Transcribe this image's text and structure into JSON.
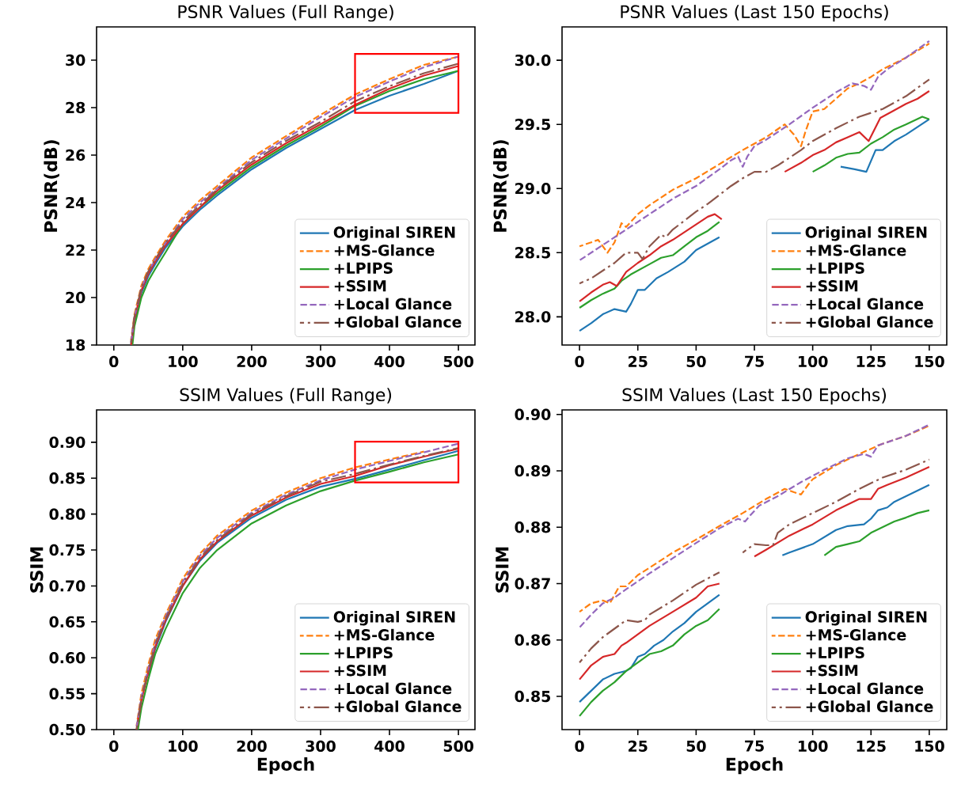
{
  "chart_data": [
    {
      "type": "line",
      "title": "PSNR Values (Full Range)",
      "ylabel": "PSNR(dB)",
      "xlim": [
        -25,
        524
      ],
      "ylim": [
        18,
        31.4
      ],
      "xticks": [
        0,
        100,
        200,
        300,
        400,
        500
      ],
      "yticks": [
        18,
        20,
        22,
        24,
        26,
        28,
        30
      ],
      "legend": "bottom right",
      "series": [
        {
          "name": "Original SIREN",
          "color": "#1f77b4",
          "line_style": "solid",
          "x": [
            25,
            30,
            40,
            50,
            60,
            75,
            100,
            125,
            150,
            200,
            250,
            300,
            350,
            400,
            450,
            500
          ],
          "values": [
            18.0,
            19.0,
            20.2,
            20.9,
            21.4,
            22.1,
            23.0,
            23.7,
            24.3,
            25.4,
            26.3,
            27.1,
            27.9,
            28.5,
            29.0,
            29.55
          ]
        },
        {
          "name": "+MS-Glance",
          "color": "#ff7f0e",
          "line_style": "dashed",
          "x": [
            25,
            30,
            40,
            50,
            60,
            75,
            100,
            125,
            150,
            200,
            250,
            300,
            350,
            400,
            450,
            500
          ],
          "values": [
            18.2,
            19.3,
            20.5,
            21.2,
            21.7,
            22.4,
            23.4,
            24.1,
            24.7,
            25.9,
            26.8,
            27.7,
            28.55,
            29.2,
            29.8,
            30.15
          ]
        },
        {
          "name": "+LPIPS",
          "color": "#2ca02c",
          "line_style": "solid",
          "x": [
            27,
            30,
            40,
            50,
            60,
            75,
            100,
            125,
            150,
            200,
            250,
            300,
            350,
            400,
            450,
            500
          ],
          "values": [
            18.0,
            18.8,
            20.0,
            20.7,
            21.2,
            21.9,
            23.1,
            23.8,
            24.4,
            25.5,
            26.4,
            27.2,
            28.07,
            28.7,
            29.2,
            29.55
          ]
        },
        {
          "name": "+SSIM",
          "color": "#d62728",
          "line_style": "solid",
          "x": [
            25,
            30,
            40,
            50,
            60,
            75,
            100,
            125,
            150,
            200,
            250,
            300,
            350,
            400,
            450,
            500
          ],
          "values": [
            18.0,
            19.1,
            20.3,
            21.0,
            21.5,
            22.2,
            23.1,
            23.8,
            24.5,
            25.6,
            26.5,
            27.3,
            28.12,
            28.8,
            29.35,
            29.75
          ]
        },
        {
          "name": "+Local Glance",
          "color": "#9467bd",
          "line_style": "dashed",
          "x": [
            25,
            30,
            40,
            50,
            60,
            75,
            100,
            125,
            150,
            200,
            250,
            300,
            350,
            400,
            450,
            500
          ],
          "values": [
            18.1,
            19.2,
            20.4,
            21.1,
            21.6,
            22.3,
            23.3,
            24.0,
            24.6,
            25.8,
            26.7,
            27.6,
            28.45,
            29.1,
            29.7,
            30.15
          ]
        },
        {
          "name": "+Global Glance",
          "color": "#8c564b",
          "line_style": "dashdot",
          "x": [
            25,
            30,
            40,
            50,
            60,
            75,
            100,
            125,
            150,
            200,
            250,
            300,
            350,
            400,
            450,
            500
          ],
          "values": [
            18.1,
            19.2,
            20.4,
            21.1,
            21.6,
            22.3,
            23.2,
            23.9,
            24.55,
            25.7,
            26.6,
            27.4,
            28.27,
            28.9,
            29.45,
            29.85
          ]
        }
      ]
    },
    {
      "type": "line",
      "title": "PSNR Values (Last 150 Epochs)",
      "ylabel": "PSNR(dB)",
      "xlim": [
        -7.5,
        157.5
      ],
      "ylim": [
        27.78,
        30.26
      ],
      "xticks": [
        0,
        25,
        50,
        75,
        100,
        125,
        150
      ],
      "yticks": [
        {
          "value": 28,
          "label": "28.0"
        },
        28.5,
        {
          "value": 29,
          "label": "29.0"
        },
        29.5,
        {
          "value": 30,
          "label": "30.0"
        }
      ],
      "legend": "bottom right",
      "series": [
        {
          "name": "Original SIREN",
          "color": "#1f77b4",
          "line_style": "solid",
          "x": [
            0,
            5,
            10,
            15,
            20,
            22,
            25,
            28,
            33,
            38,
            45,
            50,
            60,
            65,
            105,
            112,
            118,
            123,
            127,
            130,
            135,
            140,
            145,
            150
          ],
          "values": [
            27.89,
            27.95,
            28.02,
            28.06,
            28.04,
            28.1,
            28.21,
            28.21,
            28.3,
            28.35,
            28.43,
            28.52,
            28.62,
            null,
            null,
            29.17,
            29.15,
            29.13,
            29.3,
            29.3,
            29.37,
            29.42,
            29.48,
            29.54
          ]
        },
        {
          "name": "+MS-Glance",
          "color": "#ff7f0e",
          "line_style": "dashed",
          "x": [
            0,
            5,
            8,
            12,
            15,
            18,
            20,
            25,
            30,
            40,
            50,
            60,
            70,
            80,
            88,
            92,
            95,
            97,
            100,
            105,
            110,
            115,
            120,
            125,
            130,
            140,
            150
          ],
          "values": [
            28.55,
            28.58,
            28.6,
            28.5,
            28.58,
            28.73,
            28.7,
            28.8,
            28.87,
            28.99,
            29.08,
            29.19,
            29.3,
            29.4,
            29.5,
            29.42,
            29.33,
            29.45,
            29.6,
            29.62,
            29.7,
            29.78,
            29.82,
            29.87,
            29.93,
            30.02,
            30.13
          ]
        },
        {
          "name": "+LPIPS",
          "color": "#2ca02c",
          "line_style": "solid",
          "x": [
            0,
            5,
            10,
            15,
            18,
            22,
            30,
            35,
            40,
            45,
            50,
            55,
            60,
            65,
            98,
            100,
            105,
            110,
            115,
            120,
            125,
            130,
            135,
            140,
            147,
            150
          ],
          "values": [
            28.07,
            28.13,
            28.18,
            28.22,
            28.28,
            28.33,
            28.41,
            28.46,
            28.48,
            28.55,
            28.62,
            28.67,
            28.74,
            null,
            null,
            29.13,
            29.18,
            29.24,
            29.27,
            29.28,
            29.35,
            29.4,
            29.46,
            29.5,
            29.56,
            29.54
          ]
        },
        {
          "name": "+SSIM",
          "color": "#d62728",
          "line_style": "solid",
          "x": [
            0,
            5,
            10,
            13,
            16,
            20,
            25,
            30,
            35,
            40,
            45,
            50,
            55,
            58,
            61,
            65,
            85,
            88,
            95,
            100,
            105,
            110,
            115,
            120,
            124,
            129,
            134,
            140,
            145,
            150
          ],
          "values": [
            28.12,
            28.19,
            28.25,
            28.27,
            28.24,
            28.35,
            28.42,
            28.48,
            28.55,
            28.6,
            28.66,
            28.72,
            28.78,
            28.8,
            28.76,
            null,
            null,
            29.13,
            29.2,
            29.26,
            29.3,
            29.36,
            29.4,
            29.44,
            29.37,
            29.55,
            29.6,
            29.66,
            29.7,
            29.76
          ]
        },
        {
          "name": "+Local Glance",
          "color": "#9467bd",
          "line_style": "dashed",
          "x": [
            0,
            5,
            10,
            15,
            20,
            30,
            40,
            50,
            60,
            65,
            68,
            70,
            72,
            75,
            80,
            90,
            100,
            110,
            117,
            122,
            125,
            128,
            132,
            140,
            150
          ],
          "values": [
            28.44,
            28.5,
            28.56,
            28.62,
            28.68,
            28.8,
            28.92,
            29.02,
            29.15,
            29.22,
            29.25,
            29.17,
            29.25,
            29.33,
            29.38,
            29.5,
            29.63,
            29.75,
            29.82,
            29.8,
            29.77,
            29.87,
            29.93,
            30.02,
            30.15
          ]
        },
        {
          "name": "+Global Glance",
          "color": "#8c564b",
          "line_style": "dashdot",
          "x": [
            0,
            5,
            10,
            15,
            20,
            25,
            27,
            30,
            35,
            37,
            40,
            45,
            50,
            55,
            60,
            65,
            70,
            75,
            80,
            85,
            90,
            95,
            100,
            110,
            120,
            130,
            140,
            150
          ],
          "values": [
            28.26,
            28.3,
            28.36,
            28.42,
            28.5,
            28.5,
            28.45,
            28.55,
            28.64,
            28.62,
            28.68,
            28.75,
            28.82,
            28.88,
            28.95,
            29.02,
            29.08,
            29.13,
            29.13,
            29.18,
            29.24,
            29.3,
            29.37,
            29.47,
            29.56,
            29.62,
            29.72,
            29.85
          ]
        }
      ]
    },
    {
      "type": "line",
      "title": "SSIM Values (Full Range)",
      "xlabel": "Epoch",
      "ylabel": "SSIM",
      "xlim": [
        -25,
        524
      ],
      "ylim": [
        0.5,
        0.945
      ],
      "xticks": [
        0,
        100,
        200,
        300,
        400,
        500
      ],
      "yticks": [
        {
          "value": 0.5,
          "label": "0.50"
        },
        0.55,
        {
          "value": 0.6,
          "label": "0.60"
        },
        0.65,
        {
          "value": 0.7,
          "label": "0.70"
        },
        0.75,
        {
          "value": 0.8,
          "label": "0.80"
        },
        0.85,
        {
          "value": 0.9,
          "label": "0.90"
        }
      ],
      "legend": "bottom right",
      "series": [
        {
          "name": "Original SIREN",
          "color": "#1f77b4",
          "line_style": "solid",
          "x": [
            50,
            60,
            75,
            100,
            125,
            150,
            200,
            250,
            300,
            350,
            400,
            450,
            500
          ],
          "values": [
            0.575,
            0.612,
            0.65,
            0.7,
            0.735,
            0.76,
            0.795,
            0.82,
            0.838,
            0.849,
            0.862,
            0.875,
            0.888
          ]
        },
        {
          "name": "+MS-Glance",
          "color": "#ff7f0e",
          "line_style": "dashed",
          "x": [
            33,
            40,
            50,
            60,
            75,
            100,
            125,
            150,
            200,
            250,
            300,
            350,
            400,
            450
          ],
          "values": [
            0.505,
            0.55,
            0.59,
            0.625,
            0.66,
            0.71,
            0.745,
            0.77,
            0.805,
            0.83,
            0.85,
            0.865,
            0.876,
            0.887
          ]
        },
        {
          "name": "+LPIPS",
          "color": "#2ca02c",
          "line_style": "solid",
          "x": [
            35,
            40,
            50,
            60,
            75,
            100,
            125,
            150,
            200,
            250,
            300,
            350,
            400,
            450,
            500
          ],
          "values": [
            0.5,
            0.53,
            0.57,
            0.605,
            0.64,
            0.69,
            0.725,
            0.75,
            0.787,
            0.812,
            0.832,
            0.8465,
            0.859,
            0.872,
            0.883
          ]
        },
        {
          "name": "+SSIM",
          "color": "#d62728",
          "line_style": "solid",
          "x": [
            33,
            40,
            50,
            60,
            75,
            100,
            125,
            150,
            200,
            250,
            300,
            350,
            400,
            450,
            500
          ],
          "values": [
            0.5,
            0.54,
            0.58,
            0.615,
            0.652,
            0.7,
            0.737,
            0.762,
            0.798,
            0.823,
            0.842,
            0.853,
            0.868,
            0.88,
            0.891
          ]
        },
        {
          "name": "+Local Glance",
          "color": "#9467bd",
          "line_style": "dashed",
          "x": [
            33,
            40,
            50,
            60,
            75,
            100,
            125,
            150,
            200,
            250,
            300,
            350,
            400,
            450,
            500
          ],
          "values": [
            0.503,
            0.545,
            0.585,
            0.62,
            0.657,
            0.706,
            0.742,
            0.767,
            0.802,
            0.827,
            0.847,
            0.862,
            0.874,
            0.886,
            0.898
          ]
        },
        {
          "name": "+Global Glance",
          "color": "#8c564b",
          "line_style": "dashdot",
          "x": [
            33,
            40,
            50,
            60,
            75,
            100,
            125,
            150,
            200,
            250,
            300,
            350,
            400,
            450,
            500
          ],
          "values": [
            0.5,
            0.542,
            0.582,
            0.618,
            0.654,
            0.703,
            0.739,
            0.764,
            0.8,
            0.825,
            0.845,
            0.856,
            0.869,
            0.881,
            0.892
          ]
        }
      ]
    },
    {
      "type": "line",
      "title": "SSIM Values (Last 150 Epochs)",
      "xlabel": "Epoch",
      "ylabel": "SSIM",
      "xlim": [
        -7.5,
        157.5
      ],
      "ylim": [
        0.8441,
        0.9008
      ],
      "xticks": [
        0,
        25,
        50,
        75,
        100,
        125,
        150
      ],
      "yticks": [
        0.85,
        0.86,
        0.87,
        0.88,
        0.89,
        {
          "value": 0.9,
          "label": "0.90"
        }
      ],
      "legend": "bottom right",
      "series": [
        {
          "name": "Original SIREN",
          "color": "#1f77b4",
          "line_style": "solid",
          "x": [
            0,
            5,
            10,
            15,
            20,
            22,
            25,
            28,
            32,
            36,
            40,
            45,
            50,
            55,
            60,
            65,
            85,
            87,
            90,
            100,
            110,
            115,
            122,
            125,
            128,
            132,
            135,
            140,
            145,
            150
          ],
          "values": [
            0.849,
            0.851,
            0.853,
            0.854,
            0.8545,
            0.855,
            0.857,
            0.8575,
            0.859,
            0.86,
            0.8615,
            0.863,
            0.865,
            0.8665,
            0.868,
            null,
            null,
            0.875,
            0.8755,
            0.877,
            0.8795,
            0.8802,
            0.8805,
            0.8815,
            0.883,
            0.8835,
            0.8845,
            0.8855,
            0.8865,
            0.8875
          ]
        },
        {
          "name": "+MS-Glance",
          "color": "#ff7f0e",
          "line_style": "dashed",
          "x": [
            0,
            5,
            10,
            13,
            15,
            17,
            20,
            25,
            30,
            40,
            50,
            60,
            70,
            80,
            88,
            92,
            95,
            98,
            100,
            110,
            120,
            130,
            140,
            150
          ],
          "values": [
            0.865,
            0.8665,
            0.867,
            0.8665,
            0.868,
            0.8695,
            0.8695,
            0.8715,
            0.8728,
            0.8755,
            0.8778,
            0.8802,
            0.8825,
            0.885,
            0.8868,
            0.8862,
            0.8858,
            0.8875,
            0.8885,
            0.891,
            0.893,
            0.8948,
            0.8962,
            0.898
          ]
        },
        {
          "name": "+LPIPS",
          "color": "#2ca02c",
          "line_style": "solid",
          "x": [
            0,
            5,
            10,
            15,
            20,
            25,
            30,
            35,
            40,
            45,
            50,
            55,
            60,
            65,
            103,
            105,
            110,
            115,
            120,
            125,
            130,
            135,
            140,
            145,
            150
          ],
          "values": [
            0.8465,
            0.849,
            0.851,
            0.8525,
            0.8545,
            0.856,
            0.8575,
            0.858,
            0.859,
            0.861,
            0.8625,
            0.8635,
            0.8655,
            null,
            null,
            0.875,
            0.8765,
            0.877,
            0.8775,
            0.879,
            0.88,
            0.881,
            0.8817,
            0.8825,
            0.883
          ]
        },
        {
          "name": "+SSIM",
          "color": "#d62728",
          "line_style": "solid",
          "x": [
            0,
            5,
            10,
            15,
            18,
            20,
            25,
            30,
            40,
            50,
            55,
            60,
            65,
            73,
            75,
            80,
            90,
            100,
            110,
            120,
            125,
            128,
            132,
            140,
            150
          ],
          "values": [
            0.853,
            0.8555,
            0.857,
            0.8575,
            0.859,
            0.8595,
            0.861,
            0.8625,
            0.865,
            0.8675,
            0.8695,
            0.87,
            null,
            null,
            0.8748,
            0.876,
            0.8785,
            0.8805,
            0.883,
            0.885,
            0.885,
            0.8868,
            0.8875,
            0.8888,
            0.8907
          ]
        },
        {
          "name": "+Local Glance",
          "color": "#9467bd",
          "line_style": "dashed",
          "x": [
            0,
            5,
            10,
            15,
            20,
            30,
            40,
            50,
            60,
            68,
            71,
            73,
            77,
            85,
            95,
            105,
            115,
            122,
            125,
            128,
            140,
            150
          ],
          "values": [
            0.8622,
            0.8645,
            0.8665,
            0.8675,
            0.869,
            0.8718,
            0.8745,
            0.8772,
            0.8798,
            0.8815,
            0.881,
            0.882,
            0.8838,
            0.8855,
            0.888,
            0.8902,
            0.8922,
            0.893,
            0.8925,
            0.8945,
            0.8962,
            0.8982
          ]
        },
        {
          "name": "+Global Glance",
          "color": "#8c564b",
          "line_style": "dashdot",
          "x": [
            0,
            5,
            10,
            15,
            20,
            25,
            28,
            30,
            40,
            50,
            60,
            65,
            69,
            70,
            75,
            80,
            83,
            85,
            90,
            100,
            110,
            120,
            130,
            140,
            150
          ],
          "values": [
            0.856,
            0.8585,
            0.8605,
            0.862,
            0.8635,
            0.8632,
            0.8635,
            0.8645,
            0.867,
            0.8698,
            0.872,
            null,
            null,
            0.8755,
            0.877,
            0.8768,
            0.8768,
            0.879,
            0.8805,
            0.8825,
            0.8845,
            0.8868,
            0.8888,
            0.8902,
            0.892
          ]
        }
      ]
    }
  ]
}
